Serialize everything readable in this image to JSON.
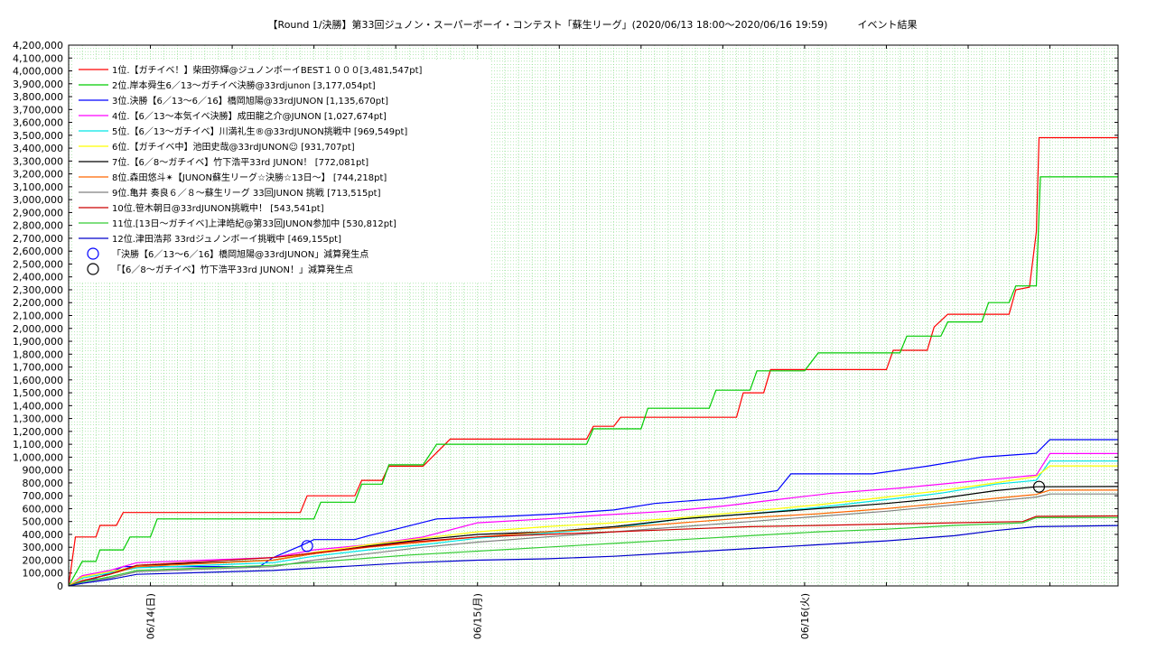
{
  "chart_data": {
    "type": "line",
    "title": "【Round 1/決勝】第33回ジュノン・スーパーボーイ・コンテスト「蘇生リーグ」(2020/06/13 18:00〜2020/06/16 19:59)　　　イベント結果",
    "xlabel": "",
    "ylabel": "",
    "ylim": [
      0,
      4200000
    ],
    "xlim": [
      0,
      77
    ],
    "x_unit": "hours since 2020/06/13 18:00",
    "y_ticks": [
      "0",
      "100,000",
      "200,000",
      "300,000",
      "400,000",
      "500,000",
      "600,000",
      "700,000",
      "800,000",
      "900,000",
      "1,000,000",
      "1,100,000",
      "1,200,000",
      "1,300,000",
      "1,400,000",
      "1,500,000",
      "1,600,000",
      "1,700,000",
      "1,800,000",
      "1,900,000",
      "2,000,000",
      "2,100,000",
      "2,200,000",
      "2,300,000",
      "2,400,000",
      "2,500,000",
      "2,600,000",
      "2,700,000",
      "2,800,000",
      "2,900,000",
      "3,000,000",
      "3,100,000",
      "3,200,000",
      "3,300,000",
      "3,400,000",
      "3,500,000",
      "3,600,000",
      "3,700,000",
      "3,800,000",
      "3,900,000",
      "4,000,000",
      "4,100,000",
      "4,200,000"
    ],
    "x_ticks": [
      {
        "x": 6,
        "label": "06/14(日)"
      },
      {
        "x": 30,
        "label": "06/15(月)"
      },
      {
        "x": 54,
        "label": "06/16(火)"
      }
    ],
    "grid": true,
    "legend_position": "top-left",
    "series": [
      {
        "name": "1位.【ガチイベ！】柴田弥輝@ジュノンボーイBEST１０００[3,481,547pt]",
        "color": "#ff0000",
        "points": [
          [
            0,
            0
          ],
          [
            0.5,
            380000
          ],
          [
            2,
            380000
          ],
          [
            2.3,
            470000
          ],
          [
            3.5,
            470000
          ],
          [
            4,
            570000
          ],
          [
            17,
            570000
          ],
          [
            17.5,
            700000
          ],
          [
            21,
            700000
          ],
          [
            21.5,
            820000
          ],
          [
            23,
            820000
          ],
          [
            23.5,
            930000
          ],
          [
            26,
            930000
          ],
          [
            28,
            1140000
          ],
          [
            38,
            1140000
          ],
          [
            38.5,
            1240000
          ],
          [
            40,
            1240000
          ],
          [
            40.5,
            1310000
          ],
          [
            49,
            1310000
          ],
          [
            49.5,
            1500000
          ],
          [
            51,
            1500000
          ],
          [
            51.5,
            1680000
          ],
          [
            60,
            1680000
          ],
          [
            60.5,
            1830000
          ],
          [
            63,
            1830000
          ],
          [
            63.5,
            2010000
          ],
          [
            64.5,
            2110000
          ],
          [
            69,
            2110000
          ],
          [
            69.5,
            2300000
          ],
          [
            70.5,
            2320000
          ],
          [
            71,
            2750000
          ],
          [
            71.2,
            3481547
          ],
          [
            77,
            3481547
          ]
        ]
      },
      {
        "name": "2位.岸本舜生6／13〜ガチイベ決勝@33rdjunon [3,177,054pt]",
        "color": "#00cc00",
        "points": [
          [
            0,
            0
          ],
          [
            1,
            190000
          ],
          [
            2,
            190000
          ],
          [
            2.3,
            280000
          ],
          [
            4,
            280000
          ],
          [
            4.5,
            380000
          ],
          [
            6,
            380000
          ],
          [
            6.5,
            520000
          ],
          [
            18,
            520000
          ],
          [
            18.5,
            650000
          ],
          [
            21,
            650000
          ],
          [
            21.5,
            790000
          ],
          [
            23,
            790000
          ],
          [
            23.5,
            940000
          ],
          [
            26,
            940000
          ],
          [
            27,
            1100000
          ],
          [
            38,
            1100000
          ],
          [
            38.5,
            1220000
          ],
          [
            42,
            1220000
          ],
          [
            42.5,
            1380000
          ],
          [
            47,
            1380000
          ],
          [
            47.5,
            1520000
          ],
          [
            50,
            1520000
          ],
          [
            50.5,
            1670000
          ],
          [
            54,
            1670000
          ],
          [
            55,
            1810000
          ],
          [
            61,
            1810000
          ],
          [
            61.5,
            1940000
          ],
          [
            64,
            1940000
          ],
          [
            64.5,
            2050000
          ],
          [
            67,
            2050000
          ],
          [
            67.5,
            2200000
          ],
          [
            69,
            2200000
          ],
          [
            69.5,
            2330000
          ],
          [
            71,
            2330000
          ],
          [
            71.3,
            3177054
          ],
          [
            77,
            3177054
          ]
        ]
      },
      {
        "name": "3位.決勝【6／13〜6／16】橋岡旭陽@33rdJUNON [1,135,670pt]",
        "color": "#0000ff",
        "points": [
          [
            0,
            0
          ],
          [
            1,
            40000
          ],
          [
            2,
            60000
          ],
          [
            3,
            100000
          ],
          [
            4,
            150000
          ],
          [
            14,
            150000
          ],
          [
            15,
            220000
          ],
          [
            17,
            310000
          ],
          [
            18,
            360000
          ],
          [
            21,
            360000
          ],
          [
            22,
            390000
          ],
          [
            24,
            440000
          ],
          [
            27,
            520000
          ],
          [
            32,
            540000
          ],
          [
            36,
            560000
          ],
          [
            40,
            590000
          ],
          [
            43,
            640000
          ],
          [
            48,
            680000
          ],
          [
            52,
            740000
          ],
          [
            53,
            870000
          ],
          [
            59,
            870000
          ],
          [
            61,
            900000
          ],
          [
            63,
            930000
          ],
          [
            67,
            1000000
          ],
          [
            71,
            1030000
          ],
          [
            72,
            1135670
          ],
          [
            77,
            1135670
          ]
        ]
      },
      {
        "name": "4位.【6／13〜本気イベ決勝】成田龍之介@JUNON [1,027,674pt]",
        "color": "#ff00ff",
        "points": [
          [
            0,
            0
          ],
          [
            1,
            80000
          ],
          [
            3,
            120000
          ],
          [
            5,
            180000
          ],
          [
            15,
            220000
          ],
          [
            18,
            280000
          ],
          [
            22,
            320000
          ],
          [
            26,
            380000
          ],
          [
            30,
            490000
          ],
          [
            35,
            520000
          ],
          [
            39,
            550000
          ],
          [
            44,
            580000
          ],
          [
            48,
            620000
          ],
          [
            52,
            670000
          ],
          [
            56,
            720000
          ],
          [
            61,
            760000
          ],
          [
            65,
            800000
          ],
          [
            69,
            840000
          ],
          [
            71,
            860000
          ],
          [
            72,
            1027674
          ],
          [
            77,
            1027674
          ]
        ]
      },
      {
        "name": "5位.【6／13〜ガチイベ】川満礼生®@33rdJUNON挑戦中 [969,549pt]",
        "color": "#00e5e5",
        "points": [
          [
            0,
            0
          ],
          [
            1,
            60000
          ],
          [
            3,
            100000
          ],
          [
            5,
            140000
          ],
          [
            15,
            180000
          ],
          [
            18,
            230000
          ],
          [
            22,
            280000
          ],
          [
            26,
            320000
          ],
          [
            30,
            370000
          ],
          [
            35,
            410000
          ],
          [
            40,
            450000
          ],
          [
            45,
            520000
          ],
          [
            50,
            560000
          ],
          [
            55,
            610000
          ],
          [
            60,
            670000
          ],
          [
            64,
            720000
          ],
          [
            68,
            790000
          ],
          [
            71,
            820000
          ],
          [
            72,
            969549
          ],
          [
            77,
            969549
          ]
        ]
      },
      {
        "name": "6位.【ガチイベ中】池田史哉@33rdJUNON☺ [931,707pt]",
        "color": "#ffff00",
        "points": [
          [
            0,
            0
          ],
          [
            1,
            70000
          ],
          [
            3,
            110000
          ],
          [
            5,
            150000
          ],
          [
            15,
            200000
          ],
          [
            18,
            260000
          ],
          [
            22,
            320000
          ],
          [
            26,
            370000
          ],
          [
            30,
            420000
          ],
          [
            35,
            460000
          ],
          [
            40,
            490000
          ],
          [
            45,
            530000
          ],
          [
            50,
            580000
          ],
          [
            55,
            630000
          ],
          [
            60,
            690000
          ],
          [
            64,
            740000
          ],
          [
            68,
            800000
          ],
          [
            71,
            850000
          ],
          [
            72,
            931707
          ],
          [
            77,
            931707
          ]
        ]
      },
      {
        "name": "7位.【6／8〜ガチイベ】竹下浩平33rd JUNON！ [772,081pt]",
        "color": "#000000",
        "points": [
          [
            0,
            0
          ],
          [
            1,
            40000
          ],
          [
            3,
            90000
          ],
          [
            5,
            160000
          ],
          [
            15,
            200000
          ],
          [
            18,
            250000
          ],
          [
            22,
            310000
          ],
          [
            26,
            360000
          ],
          [
            30,
            400000
          ],
          [
            35,
            420000
          ],
          [
            40,
            460000
          ],
          [
            45,
            520000
          ],
          [
            50,
            560000
          ],
          [
            55,
            600000
          ],
          [
            60,
            640000
          ],
          [
            64,
            680000
          ],
          [
            68,
            740000
          ],
          [
            71,
            770000
          ],
          [
            77,
            772081
          ]
        ]
      },
      {
        "name": "8位.森田悠斗✴【JUNON蘇生リーグ☆決勝☆13日〜】 [744,218pt]",
        "color": "#ff6600",
        "points": [
          [
            0,
            0
          ],
          [
            1,
            40000
          ],
          [
            3,
            90000
          ],
          [
            5,
            150000
          ],
          [
            15,
            200000
          ],
          [
            18,
            250000
          ],
          [
            22,
            300000
          ],
          [
            26,
            340000
          ],
          [
            30,
            380000
          ],
          [
            35,
            420000
          ],
          [
            40,
            450000
          ],
          [
            45,
            490000
          ],
          [
            50,
            530000
          ],
          [
            55,
            560000
          ],
          [
            60,
            600000
          ],
          [
            64,
            640000
          ],
          [
            68,
            680000
          ],
          [
            71,
            710000
          ],
          [
            72,
            744218
          ],
          [
            77,
            744218
          ]
        ]
      },
      {
        "name": "9位.亀井 奏良６／８〜蘇生リーグ 33回JUNON 挑戦 [713,515pt]",
        "color": "#808080",
        "points": [
          [
            0,
            0
          ],
          [
            1,
            30000
          ],
          [
            3,
            60000
          ],
          [
            5,
            110000
          ],
          [
            15,
            150000
          ],
          [
            18,
            200000
          ],
          [
            22,
            250000
          ],
          [
            26,
            300000
          ],
          [
            30,
            340000
          ],
          [
            35,
            380000
          ],
          [
            40,
            420000
          ],
          [
            45,
            460000
          ],
          [
            50,
            500000
          ],
          [
            55,
            540000
          ],
          [
            60,
            580000
          ],
          [
            64,
            620000
          ],
          [
            68,
            660000
          ],
          [
            71,
            690000
          ],
          [
            72,
            713515
          ],
          [
            77,
            713515
          ]
        ]
      },
      {
        "name": "10位.笹木朝日@33rdJUNON挑戦中！ [543,541pt]",
        "color": "#cc0000",
        "points": [
          [
            0,
            0
          ],
          [
            1,
            40000
          ],
          [
            3,
            90000
          ],
          [
            5,
            160000
          ],
          [
            15,
            220000
          ],
          [
            20,
            280000
          ],
          [
            25,
            340000
          ],
          [
            30,
            380000
          ],
          [
            35,
            400000
          ],
          [
            40,
            420000
          ],
          [
            45,
            440000
          ],
          [
            50,
            460000
          ],
          [
            55,
            470000
          ],
          [
            60,
            480000
          ],
          [
            65,
            490000
          ],
          [
            70,
            500000
          ],
          [
            71,
            540000
          ],
          [
            77,
            543541
          ]
        ]
      },
      {
        "name": "11位.[13日〜ガチイベ]上津皓紀@第33回JUNON参加中 [530,812pt]",
        "color": "#33cc33",
        "points": [
          [
            0,
            0
          ],
          [
            1,
            30000
          ],
          [
            3,
            70000
          ],
          [
            5,
            120000
          ],
          [
            15,
            160000
          ],
          [
            20,
            200000
          ],
          [
            25,
            240000
          ],
          [
            30,
            270000
          ],
          [
            35,
            300000
          ],
          [
            40,
            330000
          ],
          [
            45,
            360000
          ],
          [
            50,
            390000
          ],
          [
            55,
            420000
          ],
          [
            60,
            440000
          ],
          [
            65,
            470000
          ],
          [
            70,
            490000
          ],
          [
            71,
            530000
          ],
          [
            77,
            530812
          ]
        ]
      },
      {
        "name": "12位.津田浩邦 33rdジュノンボーイ挑戦中 [469,155pt]",
        "color": "#0000cc",
        "points": [
          [
            0,
            0
          ],
          [
            1,
            20000
          ],
          [
            3,
            50000
          ],
          [
            5,
            90000
          ],
          [
            15,
            120000
          ],
          [
            20,
            150000
          ],
          [
            25,
            180000
          ],
          [
            30,
            200000
          ],
          [
            35,
            210000
          ],
          [
            40,
            230000
          ],
          [
            45,
            260000
          ],
          [
            50,
            290000
          ],
          [
            55,
            320000
          ],
          [
            60,
            350000
          ],
          [
            65,
            390000
          ],
          [
            68,
            430000
          ],
          [
            71,
            460000
          ],
          [
            77,
            469155
          ]
        ]
      }
    ],
    "markers": [
      {
        "name": "「決勝【6／13〜6／16】橋岡旭陽@33rdJUNON」減算発生点",
        "color": "#0000ff",
        "x": 17.5,
        "y": 310000
      },
      {
        "name": "「【6／8〜ガチイベ】竹下浩平33rd JUNON！」減算発生点",
        "color": "#000000",
        "x": 71.2,
        "y": 770000
      }
    ]
  }
}
